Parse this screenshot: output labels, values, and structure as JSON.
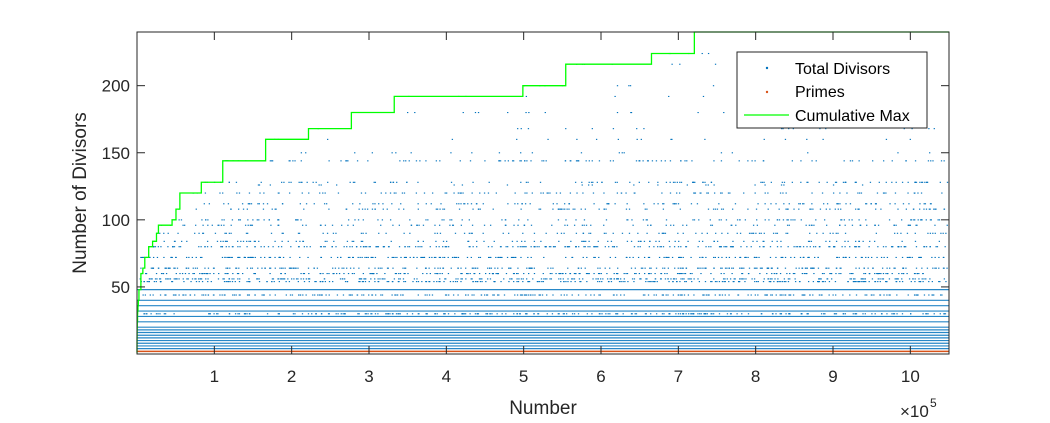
{
  "chart_data": {
    "type": "scatter",
    "xlabel": "Number",
    "ylabel": "Number of Divisors",
    "x_multiplier_label": "×10",
    "x_multiplier_exponent": "5",
    "xlim": [
      0,
      1050000
    ],
    "ylim": [
      0,
      240
    ],
    "x_ticks": [
      100000,
      200000,
      300000,
      400000,
      500000,
      600000,
      700000,
      800000,
      900000,
      1000000
    ],
    "x_tick_labels": [
      "1",
      "2",
      "3",
      "4",
      "5",
      "6",
      "7",
      "8",
      "9",
      "10"
    ],
    "y_ticks": [
      50,
      100,
      150,
      200
    ],
    "y_tick_labels": [
      "50",
      "100",
      "150",
      "200"
    ],
    "legend_position": "top-right",
    "grid": false,
    "series": [
      {
        "name": "Total Divisors",
        "style": "dots",
        "color": "#0072BD",
        "dense_levels": [
          4,
          6,
          8,
          10,
          12,
          14,
          16,
          18,
          20,
          24,
          28,
          32,
          36,
          40,
          48
        ],
        "common_levels": [
          30,
          44,
          54,
          56,
          60,
          64,
          72,
          80
        ],
        "sparse_levels": [
          84,
          90,
          96,
          100,
          108,
          112,
          120,
          128,
          144
        ],
        "rare_levels": [
          126,
          150,
          160,
          168,
          180,
          192,
          200,
          216,
          224
        ]
      },
      {
        "name": "Primes",
        "style": "dots",
        "color": "#D95319",
        "level": 2
      },
      {
        "name": "Cumulative Max",
        "style": "line",
        "color": "#00FF00",
        "steps": [
          {
            "x": 0,
            "y": 1
          },
          {
            "x": 2,
            "y": 2
          },
          {
            "x": 4,
            "y": 3
          },
          {
            "x": 6,
            "y": 4
          },
          {
            "x": 12,
            "y": 6
          },
          {
            "x": 24,
            "y": 8
          },
          {
            "x": 36,
            "y": 9
          },
          {
            "x": 48,
            "y": 10
          },
          {
            "x": 60,
            "y": 12
          },
          {
            "x": 120,
            "y": 16
          },
          {
            "x": 180,
            "y": 18
          },
          {
            "x": 240,
            "y": 20
          },
          {
            "x": 360,
            "y": 24
          },
          {
            "x": 720,
            "y": 30
          },
          {
            "x": 840,
            "y": 32
          },
          {
            "x": 1260,
            "y": 36
          },
          {
            "x": 1680,
            "y": 40
          },
          {
            "x": 2520,
            "y": 48
          },
          {
            "x": 5040,
            "y": 60
          },
          {
            "x": 7560,
            "y": 64
          },
          {
            "x": 10080,
            "y": 72
          },
          {
            "x": 15120,
            "y": 80
          },
          {
            "x": 20160,
            "y": 84
          },
          {
            "x": 25200,
            "y": 90
          },
          {
            "x": 27720,
            "y": 96
          },
          {
            "x": 45360,
            "y": 100
          },
          {
            "x": 50400,
            "y": 108
          },
          {
            "x": 55440,
            "y": 120
          },
          {
            "x": 83160,
            "y": 128
          },
          {
            "x": 110880,
            "y": 144
          },
          {
            "x": 166320,
            "y": 160
          },
          {
            "x": 221760,
            "y": 168
          },
          {
            "x": 277200,
            "y": 180
          },
          {
            "x": 332640,
            "y": 192
          },
          {
            "x": 498960,
            "y": 200
          },
          {
            "x": 554400,
            "y": 216
          },
          {
            "x": 665280,
            "y": 224
          },
          {
            "x": 720720,
            "y": 240
          },
          {
            "x": 1050000,
            "y": 240
          }
        ]
      }
    ]
  }
}
